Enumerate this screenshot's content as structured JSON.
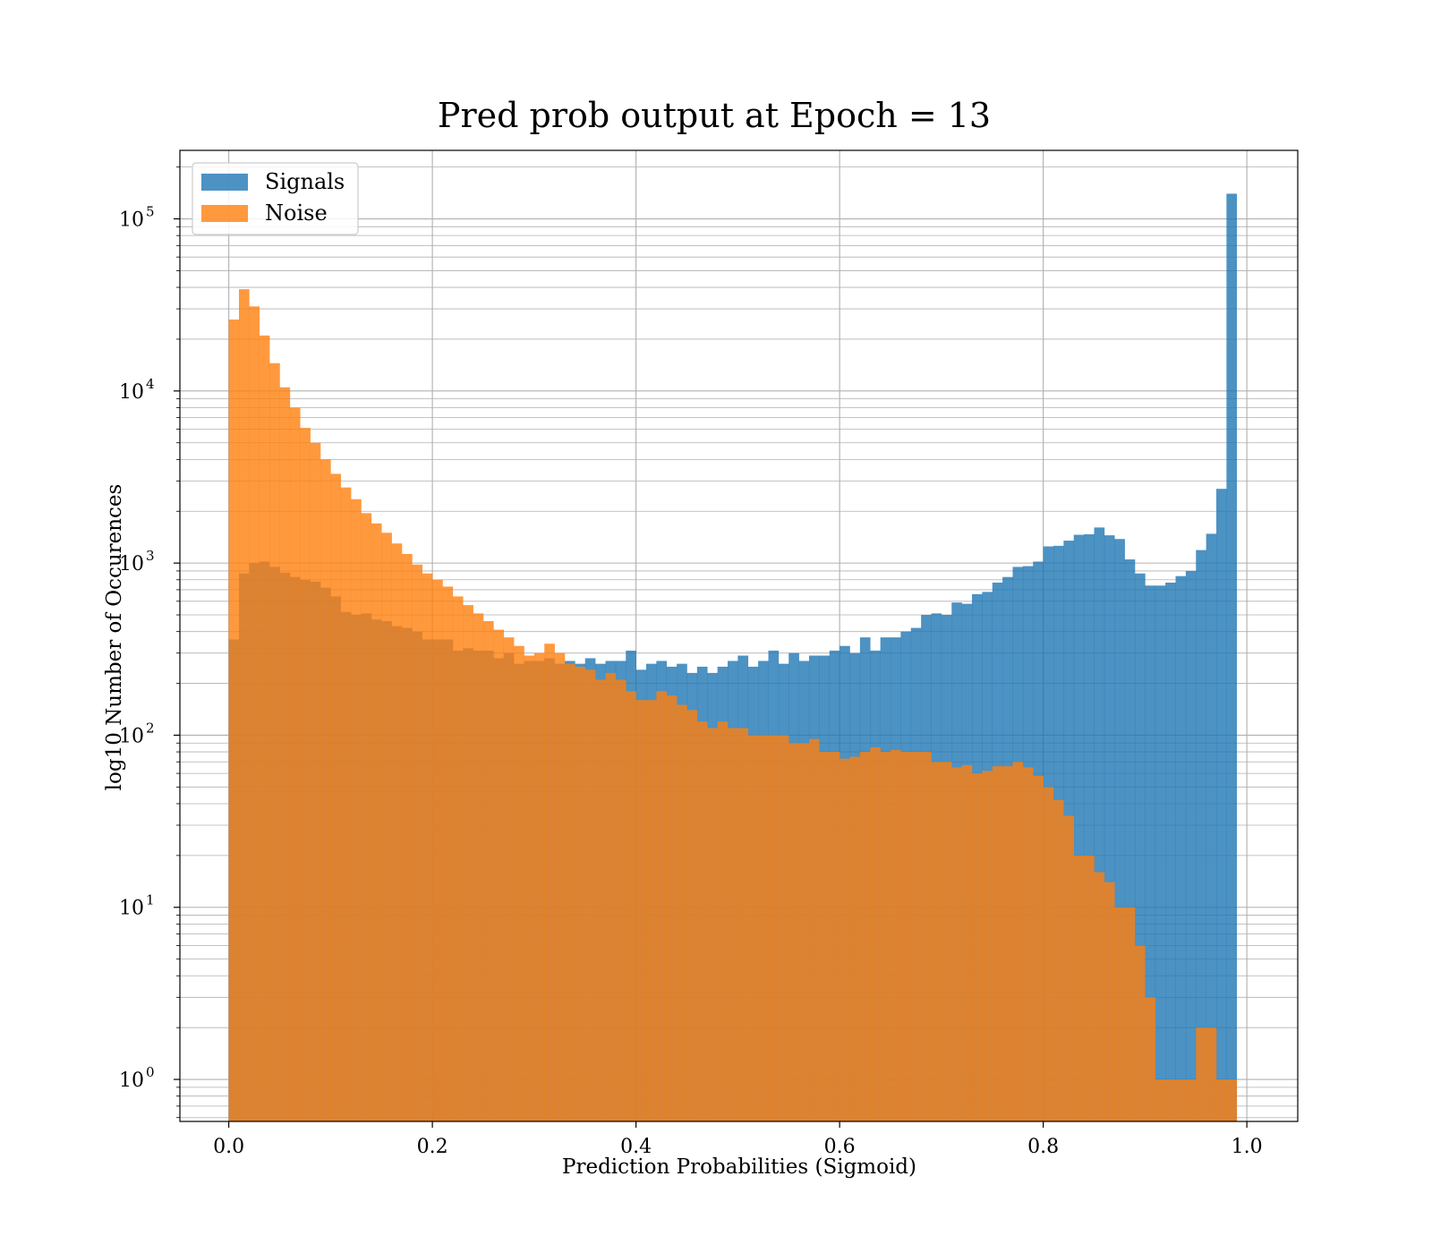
{
  "chart_data": {
    "type": "bar",
    "title": "Pred prob output at Epoch = 13",
    "xlabel": "Prediction Probabilities (Sigmoid)",
    "ylabel": "log10 Number of Occurences",
    "xlim": [
      -0.048,
      1.05
    ],
    "ylim": [
      0.57,
      250000
    ],
    "yscale": "log",
    "grid": true,
    "legend_position": "top-left",
    "x_ticks": [
      {
        "value": 0.0,
        "label": "0.0"
      },
      {
        "value": 0.2,
        "label": "0.2"
      },
      {
        "value": 0.4,
        "label": "0.4"
      },
      {
        "value": 0.6,
        "label": "0.6"
      },
      {
        "value": 0.8,
        "label": "0.8"
      },
      {
        "value": 1.0,
        "label": "1.0"
      }
    ],
    "y_ticks": [
      {
        "value": 1,
        "base": "10",
        "exp": "0"
      },
      {
        "value": 10,
        "base": "10",
        "exp": "1"
      },
      {
        "value": 100,
        "base": "10",
        "exp": "2"
      },
      {
        "value": 1000,
        "base": "10",
        "exp": "3"
      },
      {
        "value": 10000,
        "base": "10",
        "exp": "4"
      },
      {
        "value": 100000,
        "base": "10",
        "exp": "5"
      }
    ],
    "bin_start": 0.0,
    "bin_width": 0.01,
    "series": [
      {
        "name": "Signals",
        "color": "#1f77b4",
        "values": [
          360,
          870,
          1000,
          1020,
          950,
          880,
          830,
          800,
          780,
          720,
          640,
          520,
          500,
          510,
          470,
          460,
          430,
          420,
          400,
          360,
          360,
          360,
          310,
          320,
          310,
          310,
          280,
          300,
          260,
          270,
          270,
          280,
          260,
          270,
          260,
          280,
          260,
          270,
          270,
          310,
          240,
          260,
          270,
          250,
          260,
          230,
          250,
          230,
          250,
          270,
          290,
          250,
          270,
          310,
          260,
          300,
          270,
          290,
          290,
          310,
          330,
          300,
          370,
          310,
          370,
          370,
          400,
          420,
          500,
          510,
          500,
          590,
          580,
          660,
          680,
          770,
          830,
          950,
          960,
          1020,
          1250,
          1260,
          1350,
          1460,
          1470,
          1610,
          1450,
          1380,
          1050,
          870,
          740,
          740,
          770,
          840,
          900,
          1190,
          1480,
          2700,
          140000
        ]
      },
      {
        "name": "Noise",
        "color": "#ff7f0e",
        "values": [
          26000,
          39000,
          31000,
          21000,
          14500,
          10500,
          8000,
          6100,
          5000,
          4000,
          3300,
          2750,
          2350,
          1950,
          1700,
          1500,
          1300,
          1130,
          980,
          870,
          800,
          730,
          640,
          570,
          510,
          460,
          410,
          370,
          330,
          290,
          300,
          340,
          300,
          260,
          250,
          240,
          210,
          230,
          210,
          180,
          160,
          160,
          180,
          170,
          150,
          140,
          120,
          110,
          120,
          110,
          110,
          100,
          100,
          100,
          100,
          90,
          90,
          95,
          80,
          80,
          73,
          75,
          80,
          85,
          80,
          82,
          80,
          80,
          80,
          70,
          70,
          65,
          67,
          60,
          62,
          66,
          66,
          70,
          65,
          58,
          50,
          42,
          34,
          20,
          20,
          16,
          14,
          10,
          10,
          6,
          3,
          1,
          1,
          1,
          1,
          2,
          2,
          1,
          1
        ]
      }
    ]
  }
}
